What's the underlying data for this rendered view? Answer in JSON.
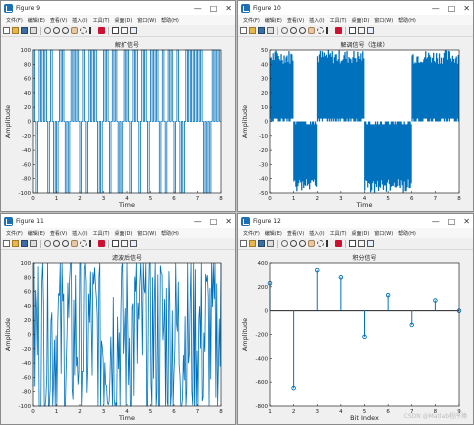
{
  "menu": [
    "文件(F)",
    "编辑(E)",
    "查看(V)",
    "插入(I)",
    "工具(T)",
    "桌面(D)",
    "窗口(W)",
    "帮助(H)"
  ],
  "window_buttons": [
    "—",
    "□",
    "✕"
  ],
  "watermark": "CSDN @Matlab程序猿",
  "windows": [
    {
      "title": "Figure 9",
      "chart_data": {
        "type": "line",
        "title": "解扩信号",
        "xlabel": "Time",
        "ylabel": "Amplitude",
        "xlim": [
          0,
          8
        ],
        "ylim": [
          -100,
          100
        ],
        "xticks": [
          0,
          1,
          2,
          3,
          4,
          5,
          6,
          7,
          8
        ],
        "yticks": [
          -100,
          -80,
          -60,
          -40,
          -20,
          0,
          20,
          40,
          60,
          80,
          100
        ],
        "series": [
          {
            "pattern": "pulse",
            "values_range": [
              -100,
              100
            ],
            "baseline": 0,
            "count": 64
          }
        ]
      }
    },
    {
      "title": "Figure 10",
      "chart_data": {
        "type": "line",
        "title": "解调信号（连续）",
        "xlabel": "Time",
        "ylabel": "Amplitude",
        "xlim": [
          0,
          8
        ],
        "ylim": [
          -50,
          50
        ],
        "xticks": [
          0,
          1,
          2,
          3,
          4,
          5,
          6,
          7,
          8
        ],
        "yticks": [
          -50,
          -40,
          -30,
          -20,
          -10,
          0,
          10,
          20,
          30,
          40,
          50
        ],
        "segments": [
          {
            "x": [
              0,
              1
            ],
            "sign": 1
          },
          {
            "x": [
              1,
              2
            ],
            "sign": -1
          },
          {
            "x": [
              2,
              3
            ],
            "sign": 1
          },
          {
            "x": [
              3,
              4
            ],
            "sign": 1
          },
          {
            "x": [
              4,
              5
            ],
            "sign": -1
          },
          {
            "x": [
              5,
              6
            ],
            "sign": -1
          },
          {
            "x": [
              6,
              7
            ],
            "sign": 1
          },
          {
            "x": [
              7,
              8
            ],
            "sign": 1
          }
        ]
      }
    },
    {
      "title": "Figure 11",
      "chart_data": {
        "type": "line",
        "title": "滤波后信号",
        "xlabel": "Time",
        "ylabel": "Amplitude",
        "xlim": [
          0,
          8
        ],
        "ylim": [
          -100,
          100
        ],
        "xticks": [
          0,
          1,
          2,
          3,
          4,
          5,
          6,
          7,
          8
        ],
        "yticks": [
          -100,
          -80,
          -60,
          -40,
          -20,
          0,
          20,
          40,
          60,
          80,
          100
        ],
        "series": [
          {
            "pattern": "noisy",
            "values_range": [
              -100,
              100
            ]
          }
        ]
      }
    },
    {
      "title": "Figure 12",
      "chart_data": {
        "type": "stem",
        "title": "积分信号",
        "xlabel": "Bit Index",
        "ylabel": "Amplitude",
        "xlim": [
          1,
          9
        ],
        "ylim": [
          -800,
          400
        ],
        "xticks": [
          1,
          2,
          3,
          4,
          5,
          6,
          7,
          8,
          9
        ],
        "yticks": [
          -800,
          -600,
          -400,
          -200,
          0,
          200,
          400
        ],
        "x": [
          1,
          2,
          3,
          4,
          5,
          6,
          7,
          8,
          9
        ],
        "y": [
          230,
          -650,
          340,
          280,
          -220,
          130,
          -120,
          85,
          0
        ]
      }
    }
  ]
}
